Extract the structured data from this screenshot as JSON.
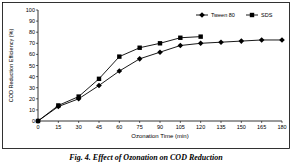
{
  "chart_data": {
    "type": "line",
    "title": "Fig. 4. Effect of Ozonation on COD Reduction",
    "x_label": "Ozonation Time (min)",
    "y_label": "COD Reduction Efficiency (%)",
    "x": [
      0,
      15,
      30,
      45,
      60,
      75,
      90,
      105,
      120,
      135,
      150,
      165,
      180
    ],
    "series": [
      {
        "name": "Tween 80",
        "color": "#000000",
        "marker": "diamond",
        "line_style": "solid",
        "values": [
          0,
          13,
          20,
          32,
          45,
          56,
          62,
          68,
          70,
          71,
          72,
          73,
          73
        ]
      },
      {
        "name": "SDS",
        "color": "#000000",
        "marker": "square",
        "line_style": "solid",
        "values": [
          0,
          14,
          22,
          38,
          58,
          66,
          70,
          75,
          76,
          null,
          null,
          null,
          null
        ]
      }
    ],
    "xlim": [
      0,
      180
    ],
    "xticks": [
      0,
      15,
      30,
      45,
      60,
      75,
      90,
      105,
      120,
      135,
      150,
      165,
      180
    ],
    "ylim": [
      0,
      100
    ],
    "yticks": [
      0,
      10,
      20,
      30,
      40,
      50,
      60,
      70,
      80,
      90,
      100
    ],
    "grid": false,
    "legend": "upper right"
  }
}
